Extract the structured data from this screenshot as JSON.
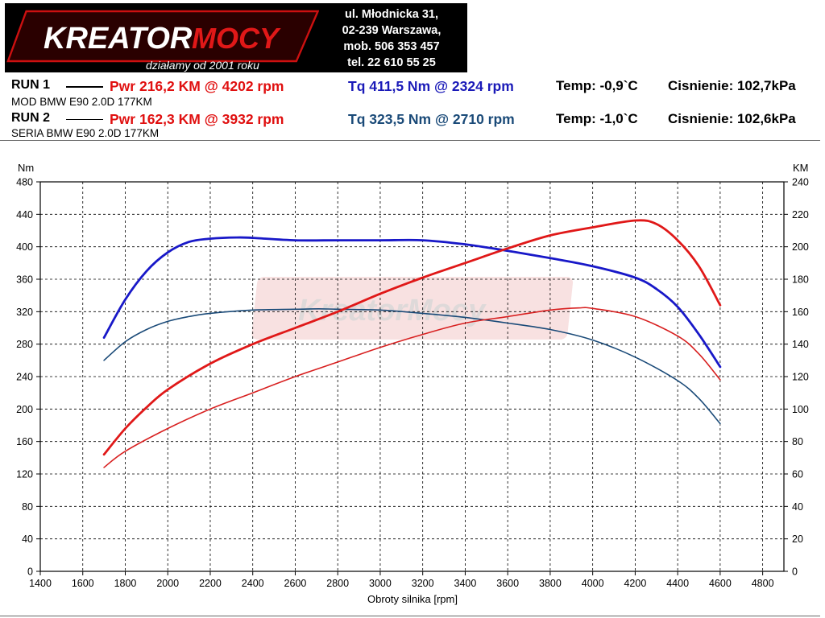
{
  "header": {
    "logo_text": "KreatorMocy",
    "slogan": "działamy od 2001 roku",
    "address_lines": [
      "ul. Młodnicka 31,",
      "02-239  Warszawa,",
      "mob.  506 353 457",
      "tel.  22 610 55 25"
    ]
  },
  "runs": [
    {
      "label": "RUN 1",
      "pwr": "Pwr  216,2 KM @ 4202 rpm",
      "tq": "Tq 411,5 Nm @ 2324 rpm",
      "temp": "Temp: -0,9`C",
      "pressure": "Cisnienie: 102,7kPa",
      "description": "MOD BMW E90 2.0D 177KM"
    },
    {
      "label": "RUN 2",
      "pwr": "Pwr  162,3 KM @ 3932 rpm",
      "tq": "Tq 323,5 Nm @ 2710 rpm",
      "temp": "Temp: -1,0`C",
      "pressure": "Cisnienie: 102,6kPa",
      "description": "SERIA BMW E90 2.0D 177KM"
    }
  ],
  "colors": {
    "power_run1": "#e01818",
    "power_run2": "#d82020",
    "torque_run1": "#1818c8",
    "torque_run2": "#1a4a78"
  },
  "chart_data": {
    "type": "line",
    "title": "",
    "xlabel": "Obroty silnika [rpm]",
    "ylabel_left": "Nm",
    "ylabel_right": "KM",
    "xlim": [
      1400,
      4900
    ],
    "ylim_left": [
      0,
      480
    ],
    "ylim_right": [
      0,
      240
    ],
    "x_ticks": [
      1400,
      1600,
      1800,
      2000,
      2200,
      2400,
      2600,
      2800,
      3000,
      3200,
      3400,
      3600,
      3800,
      4000,
      4200,
      4400,
      4600,
      4800
    ],
    "y_ticks_left": [
      0,
      40,
      80,
      120,
      160,
      200,
      240,
      280,
      320,
      360,
      400,
      440,
      480
    ],
    "y_ticks_right": [
      0,
      20,
      40,
      60,
      80,
      100,
      120,
      140,
      160,
      180,
      200,
      220,
      240
    ],
    "grid": true,
    "watermark": "KreatorMocy",
    "series": [
      {
        "name": "Tq RUN 1",
        "axis": "left",
        "style": "thick",
        "x": [
          1700,
          1800,
          1900,
          2000,
          2100,
          2200,
          2324,
          2400,
          2600,
          2800,
          3000,
          3200,
          3400,
          3600,
          3800,
          4000,
          4200,
          4300,
          4400,
          4500,
          4600
        ],
        "y": [
          288,
          335,
          370,
          393,
          406,
          410,
          411.5,
          411,
          408,
          408,
          408,
          408,
          403,
          395,
          386,
          376,
          362,
          348,
          326,
          292,
          252
        ]
      },
      {
        "name": "Tq RUN 2",
        "axis": "left",
        "style": "thin",
        "x": [
          1700,
          1800,
          1900,
          2000,
          2100,
          2200,
          2400,
          2600,
          2710,
          2800,
          3000,
          3200,
          3400,
          3600,
          3800,
          4000,
          4200,
          4400,
          4500,
          4600
        ],
        "y": [
          260,
          283,
          298,
          308,
          314,
          318,
          322,
          323,
          323.5,
          323,
          322,
          318,
          313,
          306,
          298,
          285,
          264,
          235,
          213,
          182
        ]
      },
      {
        "name": "Pwr RUN 1",
        "axis": "right",
        "style": "thick",
        "x": [
          1700,
          1800,
          1900,
          2000,
          2200,
          2400,
          2600,
          2800,
          3000,
          3200,
          3400,
          3600,
          3800,
          4000,
          4202,
          4300,
          4400,
          4500,
          4600
        ],
        "y": [
          72,
          88,
          101,
          112,
          128,
          140,
          150,
          160,
          171,
          181,
          190,
          199,
          207,
          212,
          216.2,
          214,
          204,
          188,
          164
        ]
      },
      {
        "name": "Pwr RUN 2",
        "axis": "right",
        "style": "thin",
        "x": [
          1700,
          1800,
          2000,
          2200,
          2400,
          2600,
          2800,
          3000,
          3200,
          3400,
          3600,
          3800,
          3932,
          4000,
          4200,
          4400,
          4500,
          4600
        ],
        "y": [
          64,
          74,
          88,
          100,
          110,
          120,
          129,
          138,
          146,
          153,
          157,
          161,
          162.3,
          162,
          157,
          145,
          134,
          118
        ]
      }
    ]
  }
}
